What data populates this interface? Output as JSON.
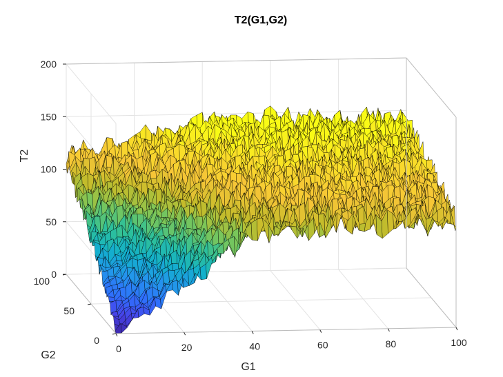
{
  "chart_data": {
    "type": "surface",
    "title": "T2(G1,G2)",
    "xlabel": "G1",
    "ylabel": "G2",
    "zlabel": "T2",
    "xlim": [
      0,
      100
    ],
    "ylim": [
      0,
      100
    ],
    "zlim": [
      0,
      200
    ],
    "xticks": [
      "0",
      "20",
      "40",
      "60",
      "80",
      "100"
    ],
    "yticks": [
      "0",
      "50",
      "100"
    ],
    "zticks": [
      "0",
      "50",
      "100",
      "150",
      "200"
    ],
    "colormap": "parula",
    "grid": true,
    "box": true,
    "surface_profile": {
      "description": "T2 is near 0 at G1=0, G2=0 and grows with G2 up to about 110 at G2=100 along G1=0; it grows with G1, plateauing around 100 once G1 exceeds ~40, and it is noisy (about ±10).",
      "g1": [
        0,
        10,
        20,
        30,
        40,
        50,
        60,
        70,
        80,
        90,
        100
      ],
      "t2_at_g2_0": [
        0,
        22,
        45,
        68,
        90,
        96,
        98,
        99,
        100,
        100,
        100
      ],
      "t2_at_g2_100": [
        112,
        118,
        126,
        134,
        140,
        142,
        143,
        143,
        142,
        140,
        138
      ]
    }
  }
}
